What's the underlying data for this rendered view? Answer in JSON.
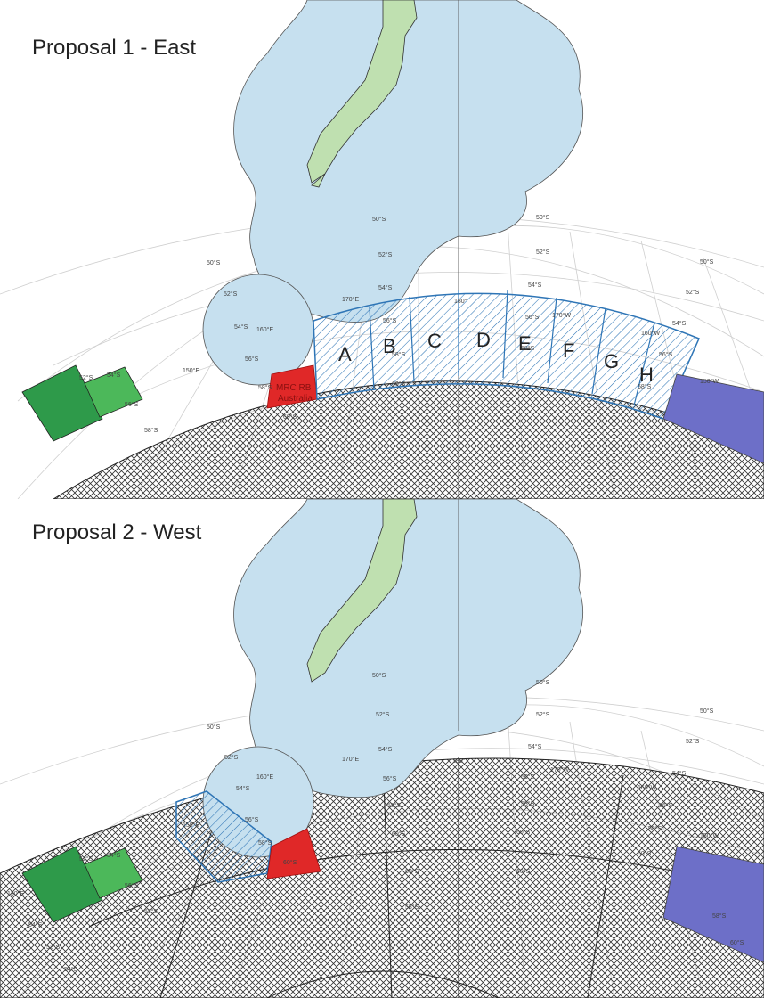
{
  "colors": {
    "eez": "#c6e0ef",
    "land": "#bfe0b0",
    "proposal_hatch": "#2e75b6",
    "mrcc_australia": "#e02828",
    "neighbour_purple": "#6d6fc8",
    "neighbour_green_dark": "#2e9a4a",
    "neighbour_green_light": "#4cb85a",
    "antarctic_crosshatch": "#333333"
  },
  "icons": {
    "eez": "eez-boundary-shape",
    "land": "landmass-shape",
    "zone": "hatched-zone-band"
  },
  "panels": [
    {
      "title": "Proposal 1 - East",
      "mrcc_label": [
        "MRC RB",
        "Australia"
      ],
      "zones": [
        "A",
        "B",
        "C",
        "D",
        "E",
        "F",
        "G",
        "H"
      ],
      "grid_labels": [
        "50°S",
        "50°S",
        "52°S",
        "54°S",
        "56°S",
        "58°S",
        "60°S",
        "52°S",
        "54°S",
        "56°S",
        "58°S",
        "50°S",
        "52°S",
        "54°S",
        "56°S",
        "58°S",
        "150°E",
        "160°E",
        "170°E",
        "180°",
        "170°W",
        "160°W",
        "150°W",
        "52°S",
        "54°S",
        "56°S",
        "58°S",
        "60°S",
        "50°S",
        "52°S",
        "54°S",
        "56°S",
        "58°S"
      ]
    },
    {
      "title": "Proposal 2 - West",
      "grid_labels": [
        "50°S",
        "50°S",
        "52°S",
        "54°S",
        "56°S",
        "58°S",
        "60°S",
        "52°S",
        "54°S",
        "56°S",
        "58°S",
        "50°S",
        "52°S",
        "54°S",
        "56°S",
        "58°S",
        "60°S",
        "150°E",
        "160°E",
        "170°E",
        "180°",
        "170°W",
        "160°W",
        "150°W",
        "130°E",
        "52°S",
        "54°S",
        "56°S",
        "58°S",
        "60°S",
        "50°S",
        "52°S",
        "54°S",
        "56°S",
        "58°S",
        "60°S",
        "54°S",
        "52°S",
        "54°S",
        "60°S",
        "58°S",
        "60°S",
        "60°S",
        "58°S"
      ]
    }
  ]
}
